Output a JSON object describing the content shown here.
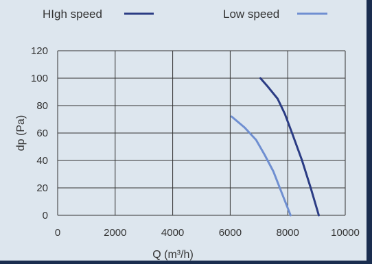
{
  "colors": {
    "background": "#dde6ee",
    "grid": "#333333",
    "text": "#333333",
    "border": "#1a2d4f"
  },
  "chart_data": {
    "type": "line",
    "title": "",
    "xlabel": "Q (m³/h)",
    "ylabel": "dp (Pa)",
    "xlim": [
      0,
      10000
    ],
    "ylim": [
      0,
      120
    ],
    "xticks": [
      "0",
      "2000",
      "4000",
      "6000",
      "8000",
      "10000"
    ],
    "yticks": [
      "0",
      "20",
      "40",
      "60",
      "80",
      "100",
      "120"
    ],
    "grid": true,
    "legend_position": "top",
    "series": [
      {
        "name": "HIgh speed",
        "color": "#2b3c84",
        "x": [
          7050,
          7300,
          7650,
          7900,
          8150,
          8500,
          8800,
          9080
        ],
        "y": [
          100,
          94,
          85,
          74,
          60,
          40,
          20,
          0
        ]
      },
      {
        "name": "Low speed",
        "color": "#6f8fd1",
        "x": [
          6050,
          6500,
          6900,
          7200,
          7500,
          7800,
          8100
        ],
        "y": [
          72,
          64,
          55,
          44,
          32,
          16,
          0
        ]
      }
    ]
  }
}
